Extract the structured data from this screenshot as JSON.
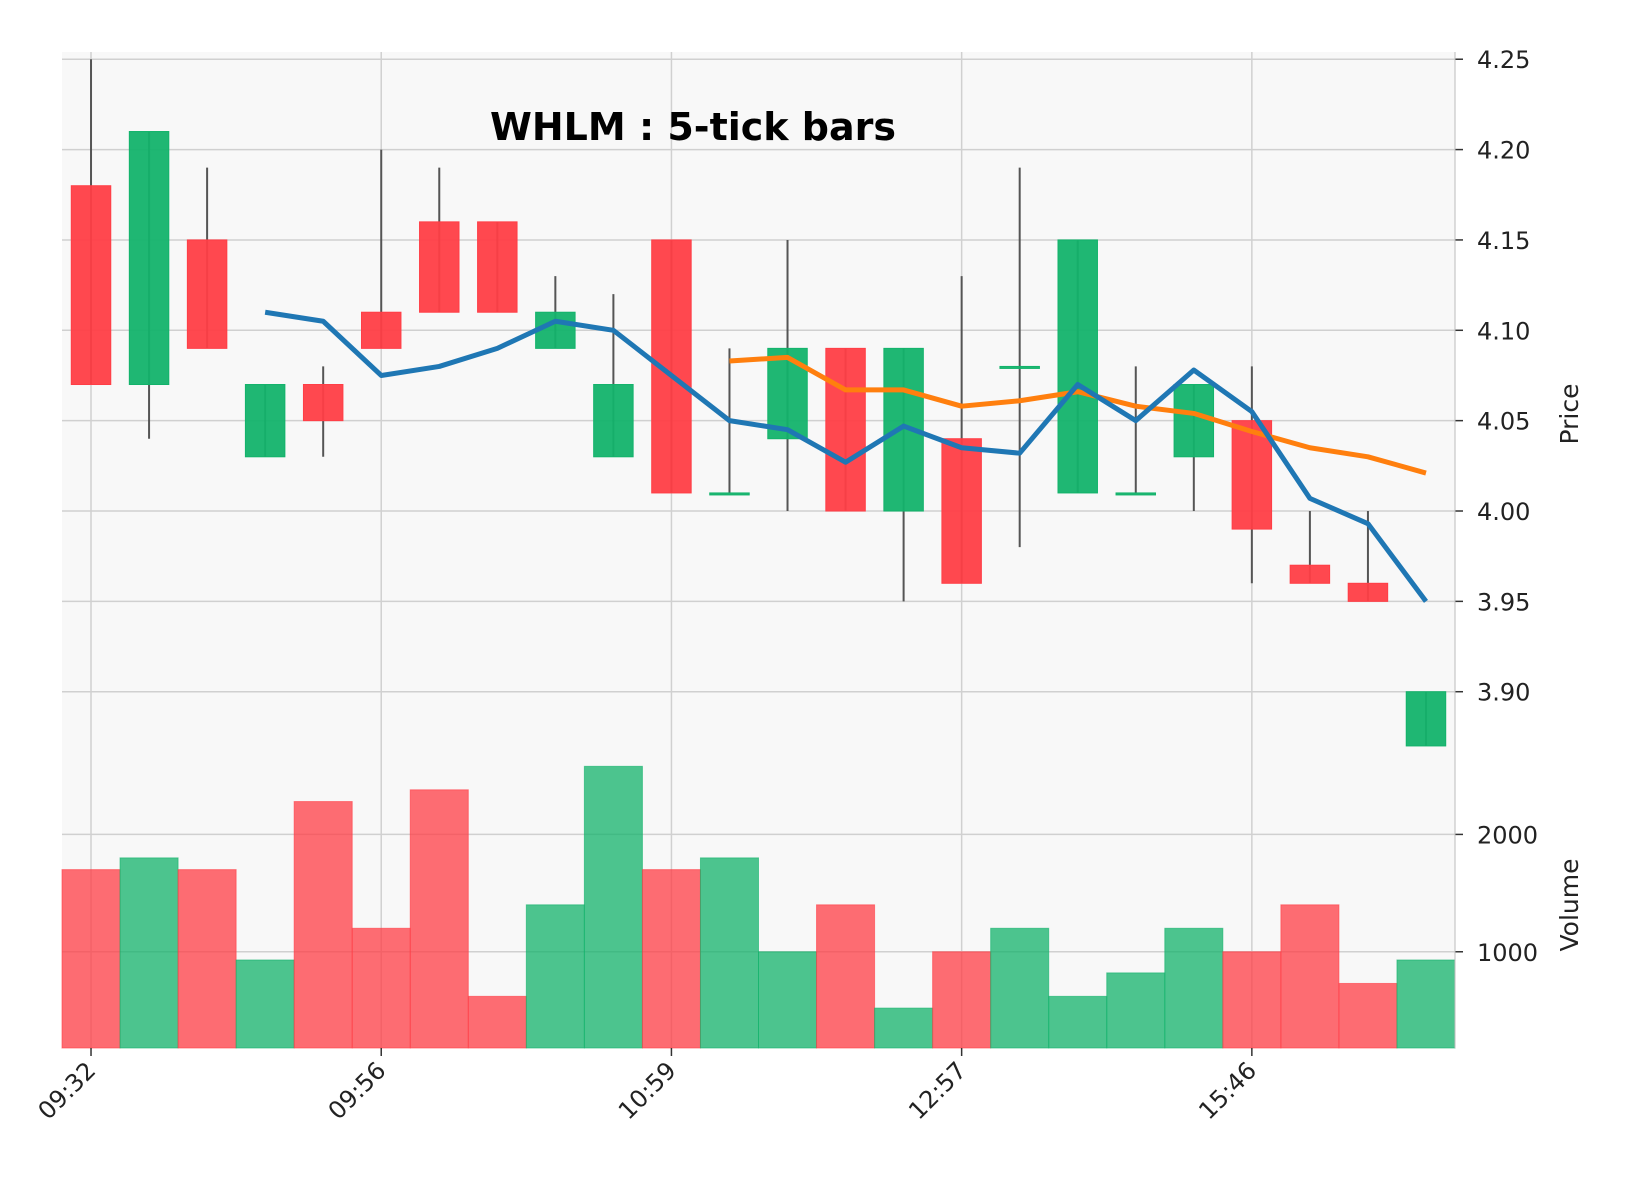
{
  "chart_data": {
    "type": "candlestick",
    "title": "WHLM : 5-tick bars",
    "price_axis": {
      "label": "Price",
      "side": "right",
      "ylim": [
        3.86,
        4.254
      ],
      "ticks": [
        "4.25",
        "4.20",
        "4.15",
        "4.10",
        "4.05",
        "4.00",
        "3.95",
        "3.90"
      ]
    },
    "volume_axis": {
      "label": "Volume",
      "side": "right",
      "ylim": [
        180,
        2600
      ],
      "ticks": [
        "2000",
        "1000"
      ]
    },
    "x_tick_labels": [
      {
        "index": 0,
        "label": "09:32"
      },
      {
        "index": 5,
        "label": "09:56"
      },
      {
        "index": 10,
        "label": "10:59"
      },
      {
        "index": 15,
        "label": "12:57"
      },
      {
        "index": 20,
        "label": "15:46"
      }
    ],
    "colors": {
      "up": "#13b36b",
      "down": "#ff3e46",
      "wick": "#555555",
      "ma_short": "#1f77b4",
      "ma_long": "#ff7f0e",
      "grid": "#d0d0d0",
      "panel": "#f8f8f8"
    },
    "grid": true,
    "candles": [
      {
        "o": 4.18,
        "h": 4.25,
        "l": 4.07,
        "c": 4.07,
        "v": 1700
      },
      {
        "o": 4.07,
        "h": 4.21,
        "l": 4.04,
        "c": 4.21,
        "v": 1800
      },
      {
        "o": 4.15,
        "h": 4.19,
        "l": 4.09,
        "c": 4.09,
        "v": 1700
      },
      {
        "o": 4.03,
        "h": 4.07,
        "l": 4.03,
        "c": 4.07,
        "v": 930
      },
      {
        "o": 4.07,
        "h": 4.08,
        "l": 4.03,
        "c": 4.05,
        "v": 2280
      },
      {
        "o": 4.11,
        "h": 4.2,
        "l": 4.09,
        "c": 4.09,
        "v": 1200
      },
      {
        "o": 4.16,
        "h": 4.19,
        "l": 4.11,
        "c": 4.11,
        "v": 2380
      },
      {
        "o": 4.16,
        "h": 4.16,
        "l": 4.11,
        "c": 4.11,
        "v": 620
      },
      {
        "o": 4.09,
        "h": 4.13,
        "l": 4.09,
        "c": 4.11,
        "v": 1400
      },
      {
        "o": 4.03,
        "h": 4.12,
        "l": 4.03,
        "c": 4.07,
        "v": 2580
      },
      {
        "o": 4.15,
        "h": 4.15,
        "l": 4.01,
        "c": 4.01,
        "v": 1700
      },
      {
        "o": 4.01,
        "h": 4.09,
        "l": 4.01,
        "c": 4.01,
        "v": 1800
      },
      {
        "o": 4.04,
        "h": 4.15,
        "l": 4.0,
        "c": 4.09,
        "v": 1000
      },
      {
        "o": 4.09,
        "h": 4.09,
        "l": 4.0,
        "c": 4.0,
        "v": 1400
      },
      {
        "o": 4.0,
        "h": 4.09,
        "l": 3.95,
        "c": 4.09,
        "v": 520
      },
      {
        "o": 4.04,
        "h": 4.13,
        "l": 3.96,
        "c": 3.96,
        "v": 1000
      },
      {
        "o": 4.08,
        "h": 4.19,
        "l": 3.98,
        "c": 4.08,
        "v": 1200
      },
      {
        "o": 4.01,
        "h": 4.15,
        "l": 4.01,
        "c": 4.15,
        "v": 620
      },
      {
        "o": 4.01,
        "h": 4.08,
        "l": 4.01,
        "c": 4.01,
        "v": 820
      },
      {
        "o": 4.03,
        "h": 4.07,
        "l": 4.0,
        "c": 4.07,
        "v": 1200
      },
      {
        "o": 4.05,
        "h": 4.08,
        "l": 3.96,
        "c": 3.99,
        "v": 1000
      },
      {
        "o": 3.97,
        "h": 4.0,
        "l": 3.96,
        "c": 3.96,
        "v": 1400
      },
      {
        "o": 3.96,
        "h": 4.0,
        "l": 3.95,
        "c": 3.95,
        "v": 730
      },
      {
        "o": 3.87,
        "h": 3.9,
        "l": 3.87,
        "c": 3.9,
        "v": 930
      }
    ],
    "ma_short": [
      null,
      null,
      null,
      4.11,
      4.105,
      4.075,
      4.08,
      4.09,
      4.105,
      4.1,
      4.075,
      4.05,
      4.045,
      4.027,
      4.047,
      4.035,
      4.032,
      4.07,
      4.05,
      4.078,
      4.055,
      4.007,
      3.993,
      3.95
    ],
    "ma_long": [
      null,
      null,
      null,
      null,
      null,
      null,
      null,
      null,
      null,
      null,
      null,
      4.083,
      4.085,
      4.067,
      4.067,
      4.058,
      4.061,
      4.066,
      4.058,
      4.054,
      4.044,
      4.035,
      4.03,
      4.021
    ]
  }
}
